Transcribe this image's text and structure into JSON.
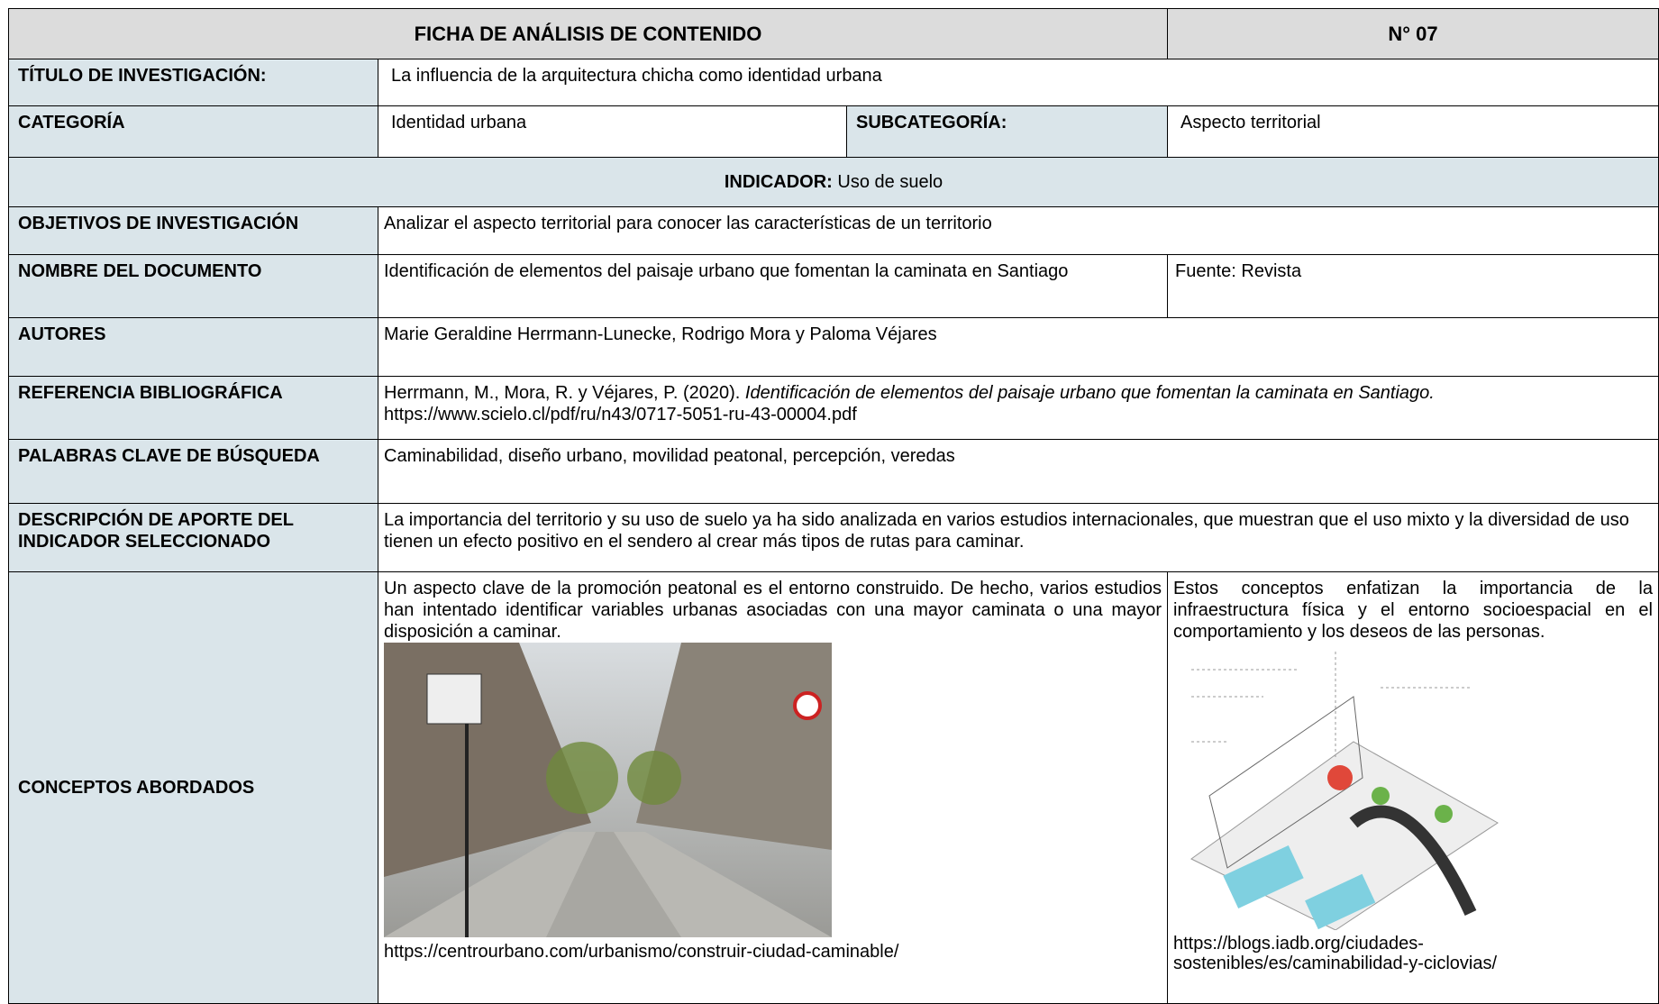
{
  "header": {
    "title": "FICHA DE ANÁLISIS DE CONTENIDO",
    "number": "N° 07"
  },
  "titulo": {
    "label": "TÍTULO DE INVESTIGACIÓN:",
    "value": "La influencia de la arquitectura chicha como identidad urbana"
  },
  "categoria": {
    "label": "CATEGORÍA",
    "value": "Identidad urbana",
    "sub_label": "SUBCATEGORÍA:",
    "sub_value": "Aspecto territorial"
  },
  "indicador": {
    "label": "INDICADOR:",
    "value": "Uso de suelo"
  },
  "objetivos": {
    "label": "OBJETIVOS DE INVESTIGACIÓN",
    "value": "Analizar el aspecto territorial para conocer las características de un territorio"
  },
  "documento": {
    "label": "NOMBRE DEL DOCUMENTO",
    "value": "Identificación de elementos del paisaje urbano que fomentan la caminata en Santiago",
    "source": "Fuente: Revista"
  },
  "autores": {
    "label": "AUTORES",
    "value": "Marie Geraldine Herrmann-Lunecke, Rodrigo Mora y Paloma Véjares"
  },
  "referencia": {
    "label": "REFERENCIA BIBLIOGRÁFICA",
    "authors": "Herrmann, M., Mora, R. y Véjares, P. (2020).",
    "work": "Identificación de elementos del paisaje urbano que fomentan la caminata en Santiago.",
    "url": "https://www.scielo.cl/pdf/ru/n43/0717-5051-ru-43-00004.pdf"
  },
  "palabras": {
    "label": "PALABRAS CLAVE DE BÚSQUEDA",
    "value": "Caminabilidad, diseño urbano, movilidad peatonal, percepción, veredas"
  },
  "descripcion": {
    "label": "DESCRIPCIÓN DE APORTE DEL INDICADOR SELECCIONADO",
    "value": "La importancia del territorio y su uso de suelo ya ha sido analizada en varios estudios internacionales, que muestran que el uso mixto y la diversidad de uso tienen un efecto positivo en el sendero al crear más tipos de rutas para caminar."
  },
  "conceptos": {
    "label": "CONCEPTOS ABORDADOS",
    "left": {
      "text": "Un aspecto clave de la promoción peatonal es el entorno construido. De hecho, varios estudios han intentado identificar variables urbanas asociadas con una mayor caminata o una mayor disposición a caminar.",
      "caption": "https://centrourbano.com/urbanismo/construir-ciudad-caminable/"
    },
    "right": {
      "text": "Estos conceptos enfatizan la importancia de la infraestructura física y el entorno socioespacial en el comportamiento y los deseos de las personas.",
      "caption": "https://blogs.iadb.org/ciudades-sostenibles/es/caminabilidad-y-ciclovias/"
    }
  }
}
